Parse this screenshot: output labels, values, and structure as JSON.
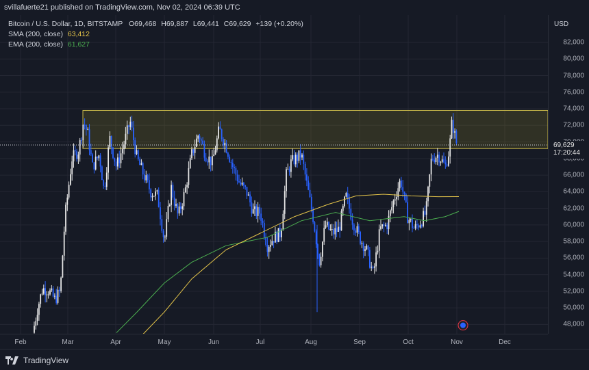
{
  "header": {
    "publisher_line": "svillafuerte21 published on TradingView.com, Nov 02, 2024 06:39 UTC",
    "symbol_line": "Bitcoin / U.S. Dollar, 1D, BITSTAMP",
    "ohlc": {
      "O": "69,468",
      "H": "69,887",
      "L": "69,441",
      "C": "69,629",
      "change": "+139 (+0.20%)"
    }
  },
  "legend": {
    "sma": {
      "label": "SMA (200, close)",
      "value": "63,412",
      "color": "#e5c54a"
    },
    "ema": {
      "label": "EMA (200, close)",
      "value": "61,627",
      "color": "#4caf50"
    }
  },
  "axis": {
    "currency": "USD",
    "price_labels": [
      "82,000",
      "80,000",
      "78,000",
      "76,000",
      "74,000",
      "72,000",
      "70,000",
      "68,000",
      "66,000",
      "64,000",
      "62,000",
      "60,000",
      "58,000",
      "56,000",
      "54,000",
      "52,000",
      "50,000",
      "48,000"
    ],
    "current_price": "69,629",
    "countdown": "17:20:44",
    "time_labels": [
      "Feb",
      "Mar",
      "Apr",
      "May",
      "Jun",
      "Jul",
      "Aug",
      "Sep",
      "Oct",
      "Nov",
      "Dec"
    ]
  },
  "footer": {
    "brand": "TradingView"
  },
  "colors": {
    "up": "#e6e6e6",
    "down": "#2962ff",
    "resistance_fill": "rgba(120,110,40,0.28)",
    "resistance_border": "#c8b84a",
    "bg": "#161a25",
    "grid": "#242733"
  },
  "chart_data": {
    "type": "candlestick",
    "title": "Bitcoin / U.S. Dollar, 1D, BITSTAMP",
    "xlabel": "",
    "ylabel": "USD",
    "ylim": [
      46500,
      83500
    ],
    "categories": [
      "Feb",
      "Mar",
      "Apr",
      "May",
      "Jun",
      "Jul",
      "Aug",
      "Sep",
      "Oct",
      "Nov",
      "Dec"
    ],
    "approx_monthly_close": [
      61200,
      71300,
      60600,
      67500,
      62700,
      64600,
      59000,
      63300,
      70300,
      69629
    ],
    "resistance_zone": [
      69200,
      73800
    ],
    "series": [
      {
        "name": "SMA (200, close)",
        "color": "#e5c54a",
        "last": 63412
      },
      {
        "name": "EMA (200, close)",
        "color": "#4caf50",
        "last": 61627
      }
    ],
    "annotations": [
      "Resistance zone box ~69,200–73,800",
      "Current price 69,629"
    ]
  }
}
